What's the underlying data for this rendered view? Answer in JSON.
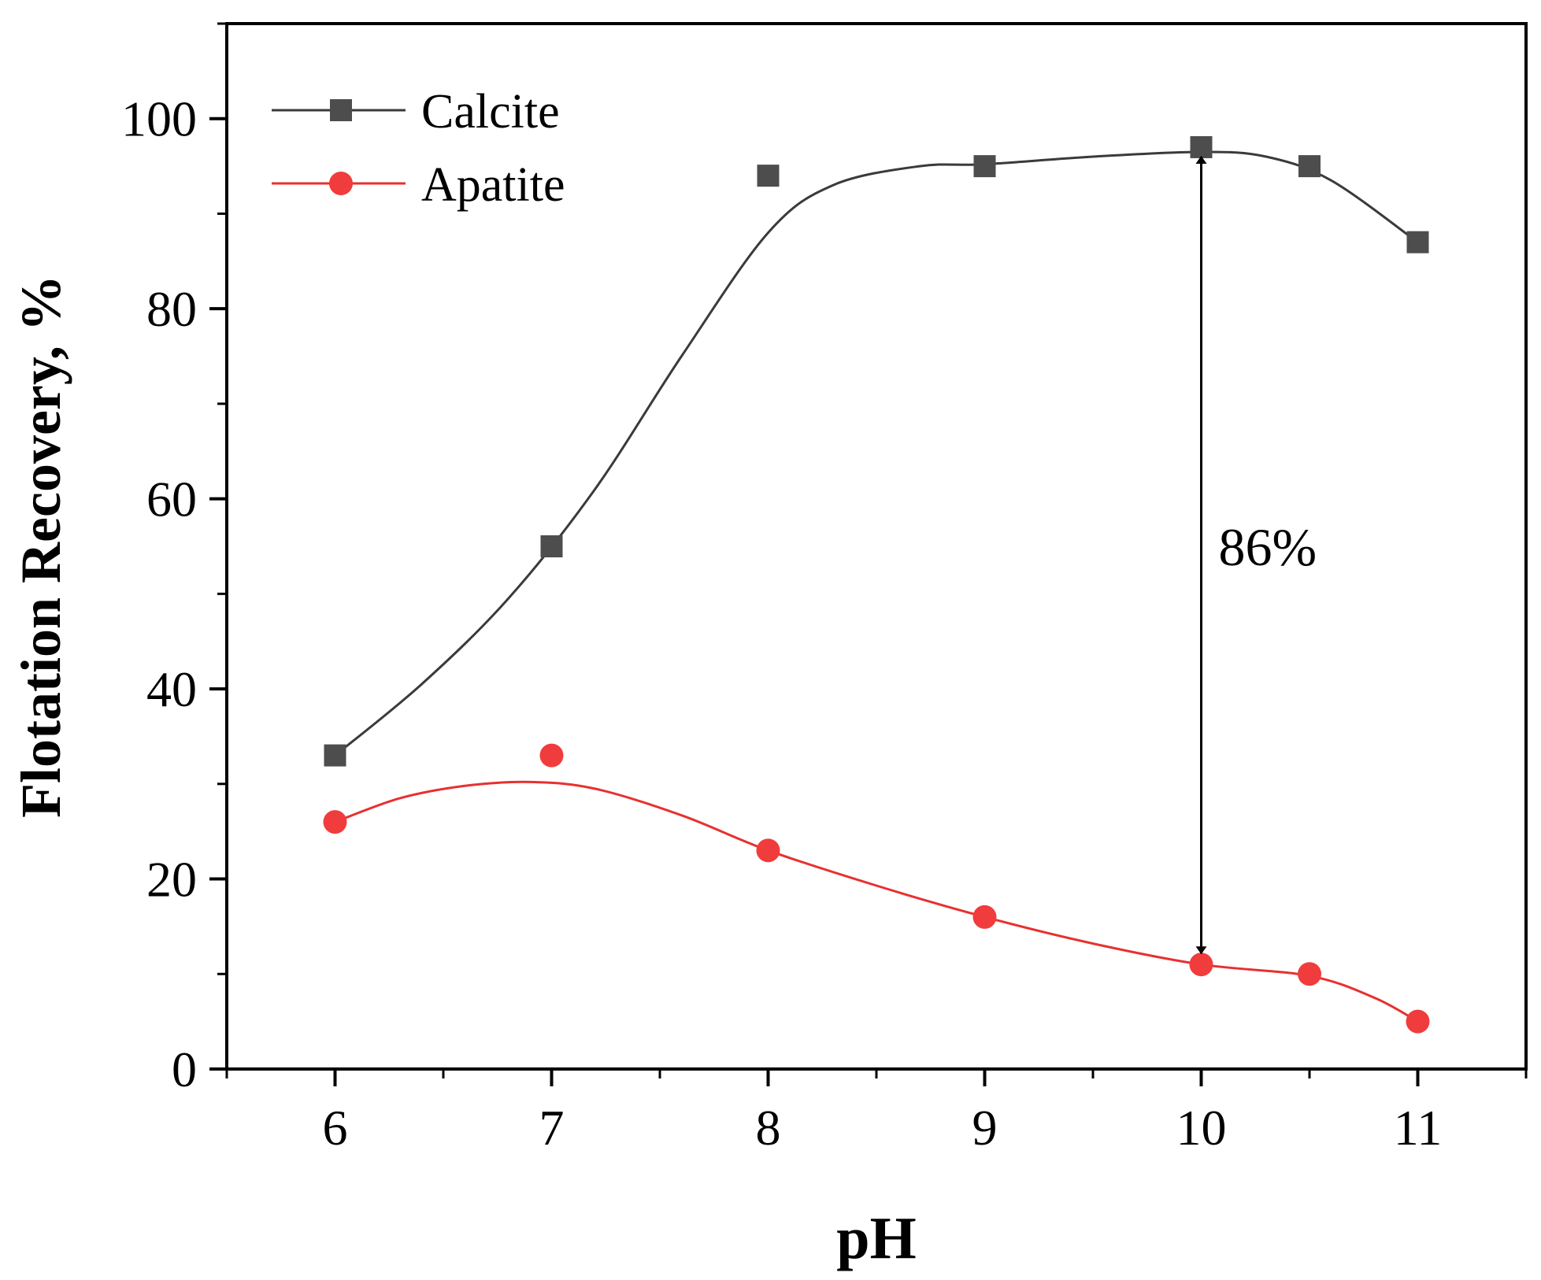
{
  "chart_data": {
    "type": "line",
    "xlabel": "pH",
    "ylabel": "Flotation Recovery, %",
    "xlim": [
      5.5,
      11.5
    ],
    "ylim": [
      0,
      110
    ],
    "x_ticks": [
      6,
      7,
      8,
      9,
      10,
      11
    ],
    "x_tick_labels": [
      "6",
      "7",
      "8",
      "9",
      "10",
      "11"
    ],
    "x_minor_ticks": [
      5.5,
      6.5,
      7.5,
      8.5,
      9.5,
      10.5,
      11.5
    ],
    "y_ticks": [
      0,
      20,
      40,
      60,
      80,
      100
    ],
    "y_tick_labels": [
      "0",
      "20",
      "40",
      "60",
      "80",
      "100"
    ],
    "y_minor_ticks": [
      10,
      30,
      50,
      70,
      90,
      110
    ],
    "grid": false,
    "legend_position": "top-left",
    "series": [
      {
        "name": "Calcite",
        "marker": "square",
        "color": "#4d4d4d",
        "line_color": "#3a3a3a",
        "points": [
          [
            6,
            33
          ],
          [
            7,
            55
          ],
          [
            8,
            94
          ],
          [
            9,
            95
          ],
          [
            10,
            97
          ],
          [
            10.5,
            95
          ],
          [
            11,
            87
          ]
        ],
        "fit": [
          [
            6,
            33
          ],
          [
            6.4,
            40.5
          ],
          [
            6.8,
            49.5
          ],
          [
            7.2,
            61
          ],
          [
            7.6,
            75
          ],
          [
            8,
            88
          ],
          [
            8.3,
            93
          ],
          [
            8.7,
            95
          ],
          [
            9,
            95.2
          ],
          [
            9.5,
            96
          ],
          [
            10,
            96.5
          ],
          [
            10.3,
            96
          ],
          [
            10.6,
            93.5
          ],
          [
            11,
            87
          ]
        ]
      },
      {
        "name": "Apatite",
        "marker": "circle",
        "color": "#f03c3c",
        "line_color": "#e83030",
        "points": [
          [
            6,
            26
          ],
          [
            7,
            33
          ],
          [
            8,
            23
          ],
          [
            9,
            16
          ],
          [
            10,
            11
          ],
          [
            10.5,
            10
          ],
          [
            11,
            5
          ]
        ],
        "fit": [
          [
            6,
            26
          ],
          [
            6.3,
            28.5
          ],
          [
            6.6,
            29.8
          ],
          [
            6.9,
            30.2
          ],
          [
            7.2,
            29.5
          ],
          [
            7.6,
            26.7
          ],
          [
            8,
            23
          ],
          [
            8.5,
            19.3
          ],
          [
            9,
            16
          ],
          [
            9.5,
            13.2
          ],
          [
            10,
            11
          ],
          [
            10.5,
            9.8
          ],
          [
            10.8,
            7.5
          ],
          [
            11,
            5
          ]
        ]
      }
    ],
    "annotation": {
      "text": "86%",
      "x": 10,
      "y_top": 97,
      "y_bottom": 11
    }
  }
}
